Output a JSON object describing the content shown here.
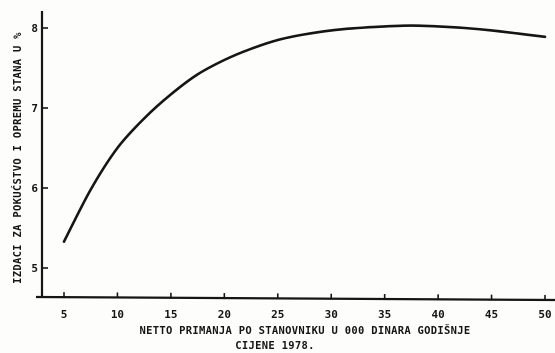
{
  "chart_data": {
    "type": "line",
    "title": "",
    "xlabel": "NETTO PRIMANJA PO STANOVNIKU U 000 DINARA GODIŠNJE",
    "xlabel_note": "CIJENE 1978.",
    "ylabel": "IZDACI ZA POKUĆSTVO I OPREMU STANA U %",
    "xlim": [
      0,
      50
    ],
    "ylim": [
      4.6,
      8.25
    ],
    "x_ticks": [
      "5",
      "10",
      "15",
      "20",
      "25",
      "30",
      "35",
      "40",
      "45",
      "50"
    ],
    "y_ticks": [
      "5",
      "6",
      "7",
      "8"
    ],
    "grid": false,
    "series": [
      {
        "x": [
          5,
          7.5,
          10,
          12.5,
          15,
          17.5,
          20,
          22.5,
          25,
          27.5,
          30,
          32.5,
          35,
          37.5,
          40,
          42.5,
          45,
          47.5,
          50
        ],
        "y": [
          5.33,
          5.98,
          6.5,
          6.87,
          7.17,
          7.42,
          7.6,
          7.74,
          7.85,
          7.92,
          7.97,
          8.0,
          8.02,
          8.03,
          8.02,
          8.0,
          7.97,
          7.93,
          7.89
        ]
      }
    ]
  }
}
